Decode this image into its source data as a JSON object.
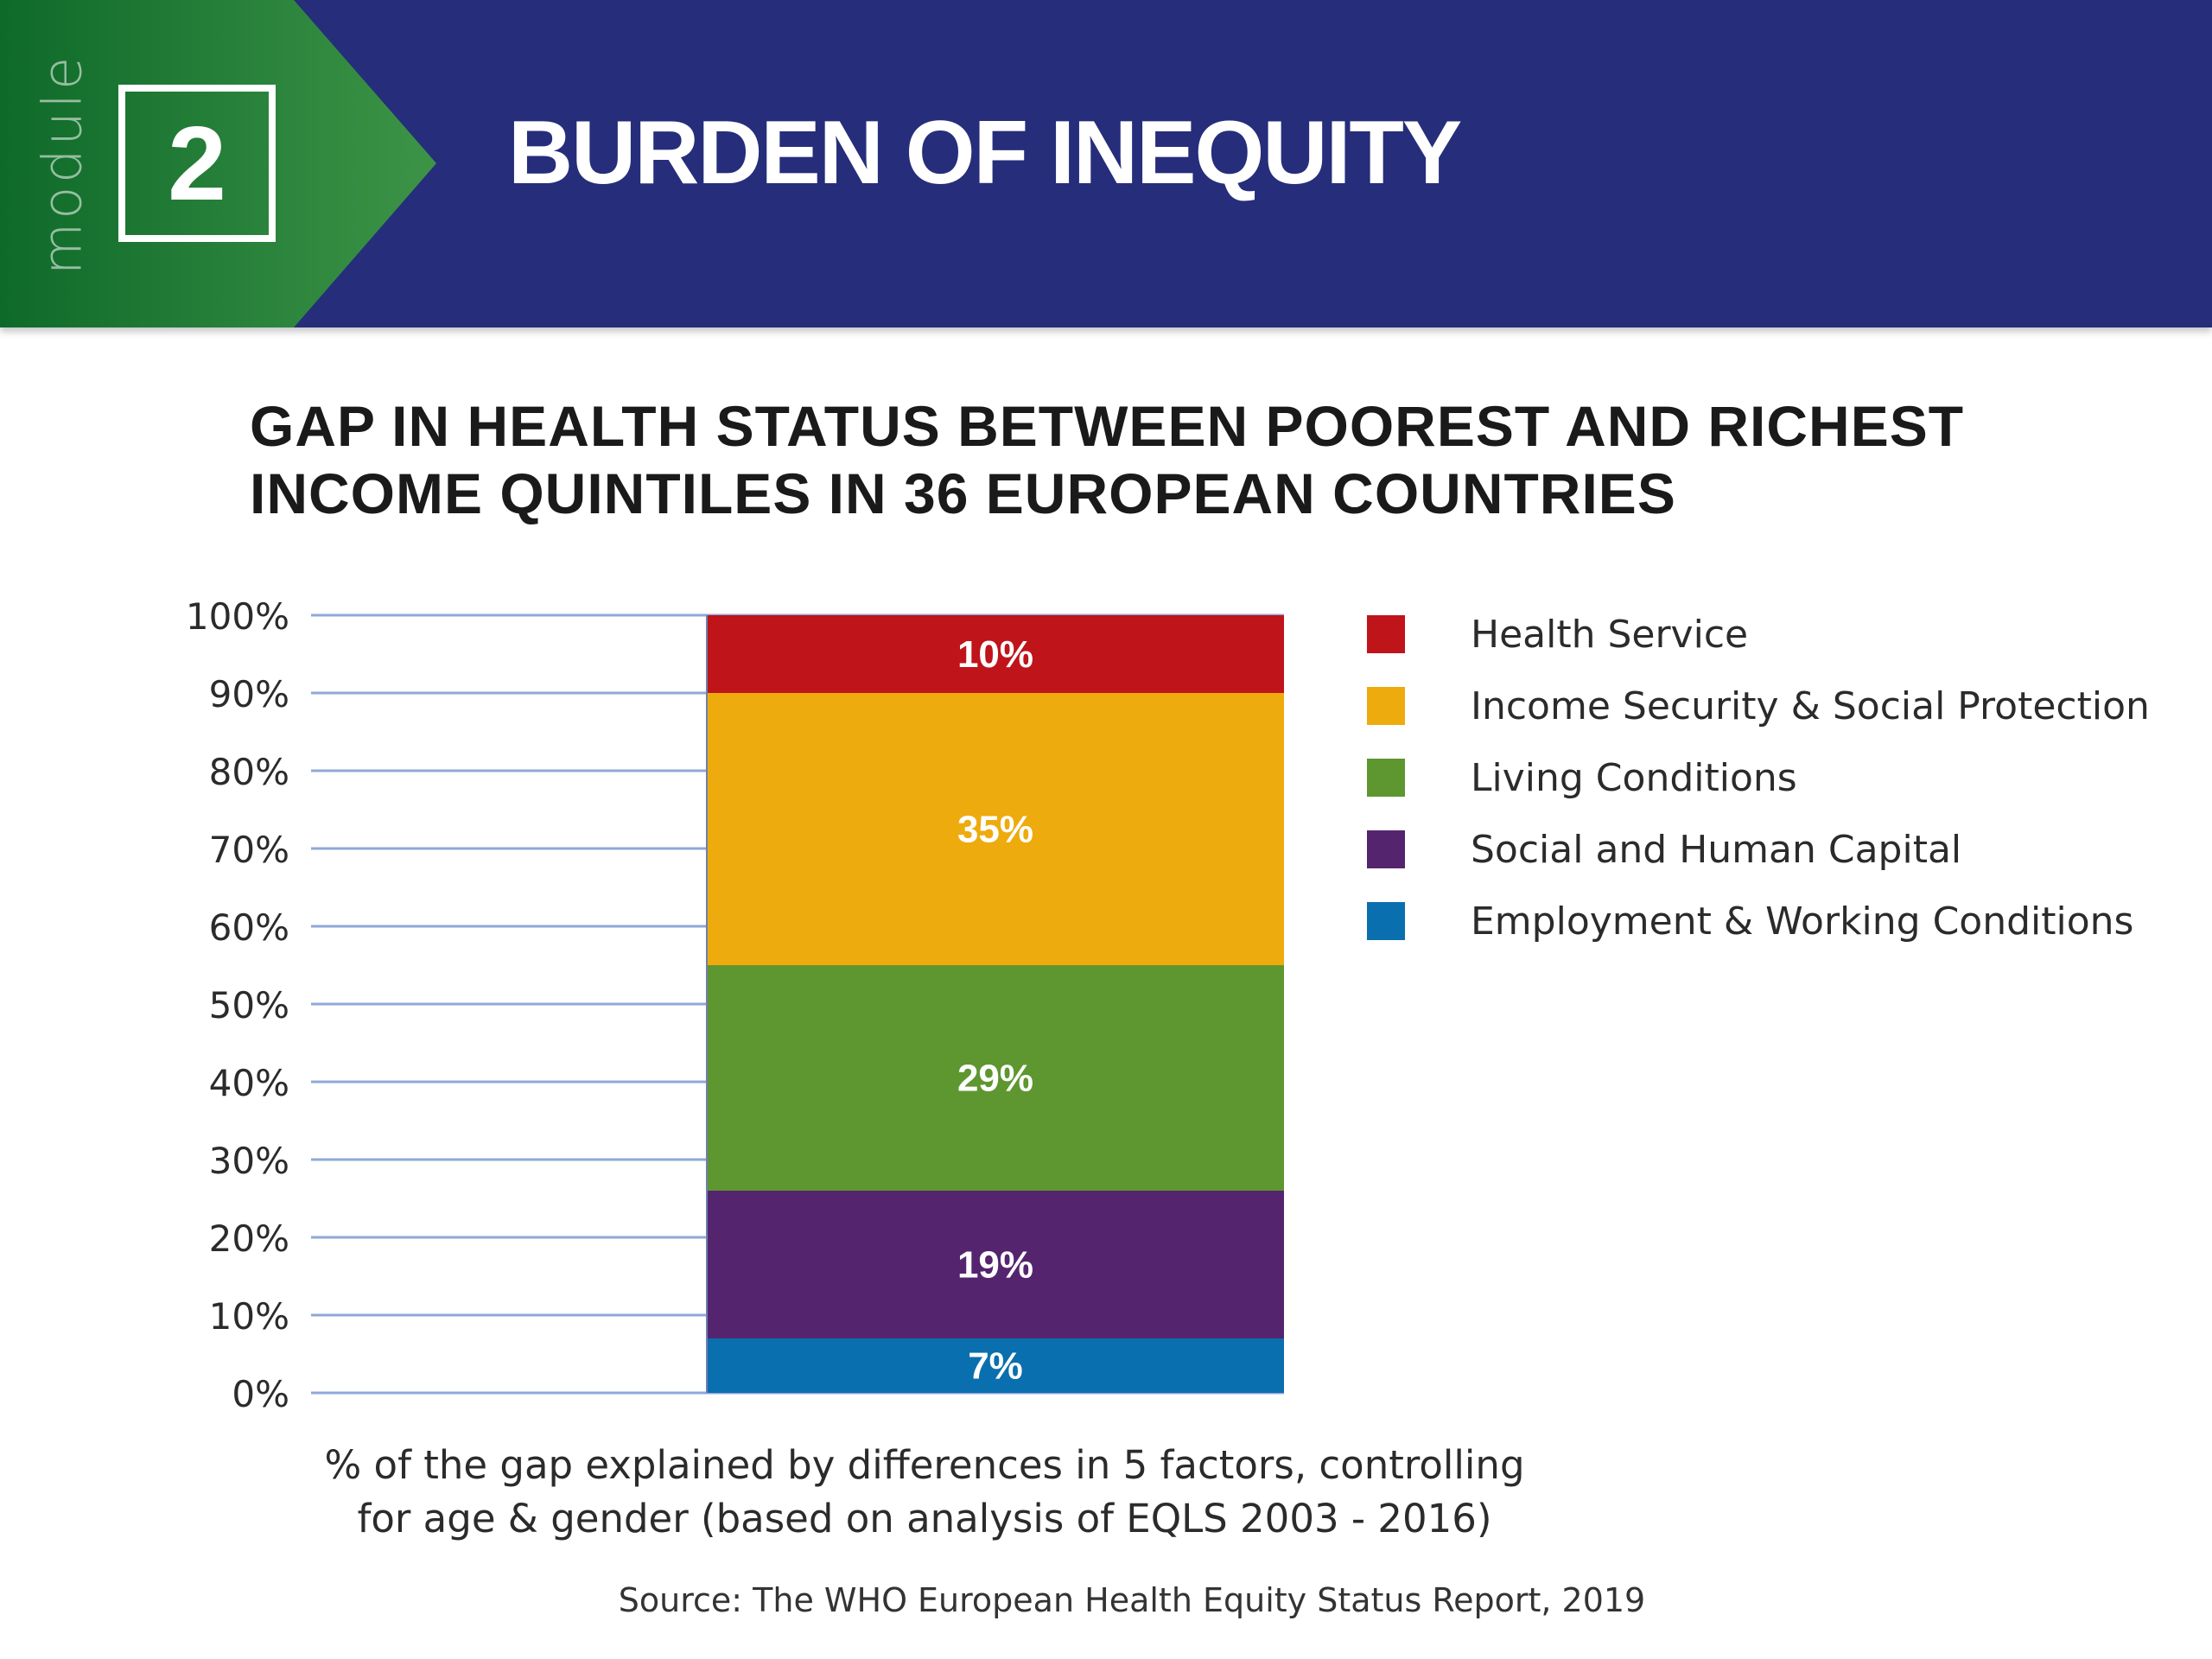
{
  "header": {
    "module_label": "module",
    "module_number": "2",
    "title": "BURDEN OF INEQUITY"
  },
  "chart_data": {
    "type": "bar",
    "stacked": true,
    "title_lines": [
      "GAP IN HEALTH STATUS BETWEEN POOREST AND RICHEST",
      "INCOME QUINTILES IN 36 EUROPEAN COUNTRIES"
    ],
    "categories": [
      ""
    ],
    "series": [
      {
        "name": "Employment & Working Conditions",
        "values": [
          7
        ],
        "label": "7%",
        "color": "#0a6fae"
      },
      {
        "name": "Social and Human Capital",
        "values": [
          19
        ],
        "label": "19%",
        "color": "#55246f"
      },
      {
        "name": "Living Conditions",
        "values": [
          29
        ],
        "label": "29%",
        "color": "#5e962f"
      },
      {
        "name": "Income Security & Social Protection",
        "values": [
          35
        ],
        "label": "35%",
        "color": "#eeab0d"
      },
      {
        "name": "Health Service",
        "values": [
          10
        ],
        "label": "10%",
        "color": "#bf141a"
      }
    ],
    "legend_order": [
      "Health Service",
      "Income Security & Social Protection",
      "Living Conditions",
      "Social and Human Capital",
      "Employment & Working Conditions"
    ],
    "legend_position": "right",
    "ylim": [
      0,
      100
    ],
    "yticks": [
      "0%",
      "10%",
      "20%",
      "30%",
      "40%",
      "50%",
      "60%",
      "70%",
      "80%",
      "90%",
      "100%"
    ],
    "grid": true,
    "grid_color": "#8fa8d8",
    "caption_lines": [
      "% of the gap explained by differences in 5 factors, controlling",
      "for age & gender (based on analysis of EQLS 2003 - 2016)"
    ],
    "source": "Source: The WHO European Health Equity Status Report, 2019"
  },
  "colors": {
    "banner": "#262d7a",
    "tab_green_dark": "#0e6a2a",
    "tab_green_light": "#3d9447"
  }
}
